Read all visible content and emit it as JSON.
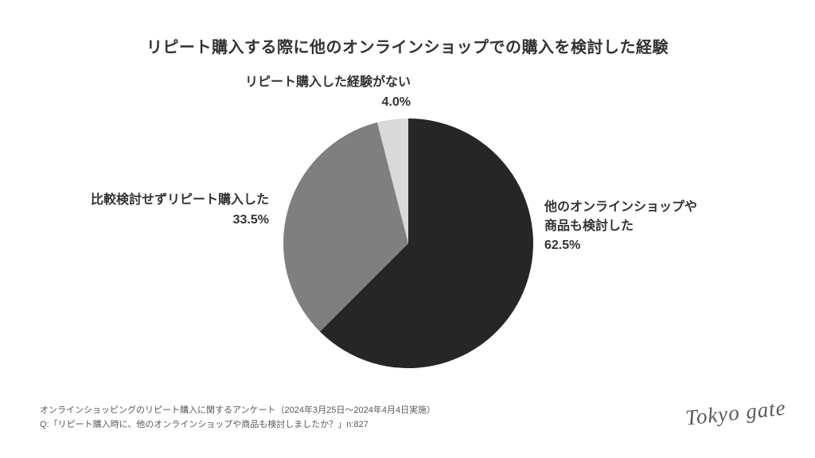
{
  "title": "リピート購入する際に他のオンラインショップでの購入を検討した経験",
  "chart_data": {
    "type": "pie",
    "title": "リピート購入する際に他のオンラインショップでの購入を検討した経験",
    "start_angle_deg": 0,
    "direction": "clockwise",
    "legend": "none",
    "background_color": "#ffffff",
    "label_color": "#333333",
    "slices": [
      {
        "label": "他のオンラインショップや商品も検討した",
        "label_lines": [
          "他のオンラインショップや",
          "商品も検討した"
        ],
        "value": 62.5,
        "pct_label": "62.5%",
        "color": "#262626"
      },
      {
        "label": "比較検討せずリピート購入した",
        "label_lines": [
          "比較検討せずリピート購入した"
        ],
        "value": 33.5,
        "pct_label": "33.5%",
        "color": "#7f7f7f"
      },
      {
        "label": "リピート購入した経験がない",
        "label_lines": [
          "リピート購入した経験がない"
        ],
        "value": 4.0,
        "pct_label": "4.0%",
        "color": "#d9d9d9"
      }
    ]
  },
  "footer": {
    "line1": "オンラインショッピングのリピート購入に関するアンケート（2024年3月25日〜2024年4月4日実施）",
    "line2": "Q:「リピート購入時に、他のオンラインショップや商品も検討しましたか？」n:827"
  },
  "logo": {
    "text": "Tokyo gate"
  }
}
